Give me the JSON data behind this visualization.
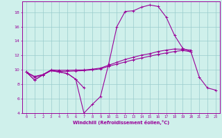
{
  "xlabel": "Windchill (Refroidissement éolien,°C)",
  "x": [
    0,
    1,
    2,
    3,
    4,
    5,
    6,
    7,
    8,
    9,
    10,
    11,
    12,
    13,
    14,
    15,
    16,
    17,
    18,
    19,
    20,
    21,
    22,
    23
  ],
  "line1": [
    9.7,
    8.6,
    9.3,
    9.9,
    9.7,
    9.5,
    8.7,
    7.5,
    null,
    null,
    null,
    null,
    null,
    null,
    null,
    null,
    null,
    null,
    null,
    null,
    null,
    null,
    null,
    null
  ],
  "line2": [
    9.7,
    8.6,
    9.3,
    9.9,
    9.7,
    9.5,
    8.7,
    4.0,
    5.2,
    6.3,
    10.8,
    16.0,
    18.1,
    18.2,
    18.7,
    19.0,
    18.8,
    17.3,
    14.8,
    13.0,
    12.5,
    9.0,
    7.5,
    7.2
  ],
  "line3": [
    9.7,
    9.0,
    9.3,
    9.9,
    9.8,
    9.8,
    9.85,
    9.9,
    10.0,
    10.15,
    10.5,
    10.8,
    11.1,
    11.4,
    11.65,
    11.9,
    12.15,
    12.35,
    12.55,
    12.7,
    12.5,
    null,
    null,
    null
  ],
  "line4": [
    9.7,
    9.1,
    9.35,
    10.0,
    9.95,
    9.95,
    9.98,
    10.0,
    10.1,
    10.25,
    10.65,
    11.05,
    11.45,
    11.75,
    12.05,
    12.25,
    12.55,
    12.75,
    12.9,
    12.85,
    12.75,
    null,
    null,
    null
  ],
  "line_color": "#990099",
  "bg_color": "#cff0eb",
  "grid_color": "#99cccc",
  "ylim": [
    4,
    19.5
  ],
  "xlim": [
    -0.5,
    23.5
  ],
  "yticks": [
    4,
    6,
    8,
    10,
    12,
    14,
    16,
    18
  ],
  "xticks": [
    0,
    1,
    2,
    3,
    4,
    5,
    6,
    7,
    8,
    9,
    10,
    11,
    12,
    13,
    14,
    15,
    16,
    17,
    18,
    19,
    20,
    21,
    22,
    23
  ]
}
